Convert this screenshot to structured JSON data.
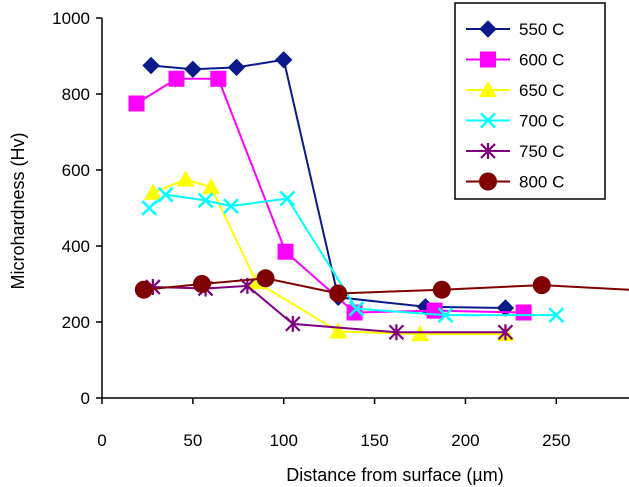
{
  "chart_data": {
    "type": "line",
    "title": "",
    "xlabel": "Distance from surface (µm)",
    "ylabel": "Microhardness (Hv)",
    "xlim": [
      0,
      290
    ],
    "ylim": [
      0,
      1000
    ],
    "xticks": [
      0,
      50,
      100,
      150,
      200,
      250
    ],
    "yticks": [
      0,
      200,
      400,
      600,
      800,
      1000
    ],
    "grid": false,
    "legend_position": "top-right",
    "series": [
      {
        "name": "550 C",
        "color": "#0a1a8a",
        "marker": "diamond",
        "x": [
          27,
          50,
          74,
          100,
          130,
          178,
          222
        ],
        "y": [
          875,
          865,
          870,
          890,
          265,
          240,
          237
        ]
      },
      {
        "name": "600 C",
        "color": "#ff00ff",
        "marker": "square",
        "x": [
          19,
          41,
          64,
          101,
          139,
          183,
          232
        ],
        "y": [
          775,
          840,
          840,
          385,
          225,
          230,
          225
        ]
      },
      {
        "name": "650 C",
        "color": "#ffff00",
        "marker": "triangle",
        "x": [
          28,
          46,
          60,
          85,
          130,
          175,
          222
        ],
        "y": [
          540,
          575,
          555,
          305,
          175,
          168,
          168
        ]
      },
      {
        "name": "700 C",
        "color": "#00ffff",
        "marker": "x",
        "x": [
          26,
          35,
          57,
          71,
          102,
          140,
          189,
          250
        ],
        "y": [
          500,
          535,
          520,
          505,
          525,
          235,
          218,
          218
        ]
      },
      {
        "name": "750 C",
        "color": "#800080",
        "marker": "star",
        "x": [
          28,
          57,
          80,
          105,
          162,
          222
        ],
        "y": [
          292,
          288,
          295,
          195,
          173,
          173
        ]
      },
      {
        "name": "800 C",
        "color": "#800000",
        "marker": "circle",
        "x": [
          23,
          55,
          90,
          130,
          187,
          242,
          290
        ],
        "y": [
          285,
          300,
          315,
          275,
          285,
          297,
          285
        ]
      }
    ]
  }
}
